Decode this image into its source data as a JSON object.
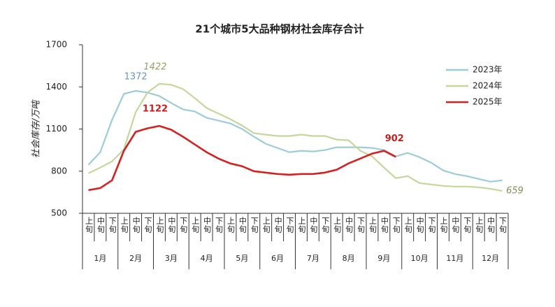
{
  "chart_data": {
    "type": "line",
    "title": "21个城市5大品种钢材社会库存合计",
    "y_label": "社会库存/万吨",
    "categories": [
      "上旬",
      "中旬",
      "下旬",
      "上旬",
      "中旬",
      "下旬",
      "上旬",
      "中旬",
      "下旬",
      "上旬",
      "中旬",
      "下旬",
      "上旬",
      "中旬",
      "下旬",
      "上旬",
      "中旬",
      "下旬",
      "上旬",
      "中旬",
      "下旬",
      "上旬",
      "中旬",
      "下旬",
      "上旬",
      "中旬",
      "下旬",
      "上旬",
      "中旬",
      "下旬",
      "上旬",
      "中旬",
      "下旬",
      "上旬",
      "中旬",
      "下旬"
    ],
    "months": [
      "1月",
      "2月",
      "3月",
      "4月",
      "5月",
      "6月",
      "7月",
      "8月",
      "9月",
      "10月",
      "11月",
      "12月"
    ],
    "ylim": [
      500,
      1700
    ],
    "yticks": [
      500,
      800,
      1100,
      1400,
      1700
    ],
    "grid": false,
    "legend": "upper right",
    "series": [
      {
        "name": "2023年",
        "color": "#9ecbd9",
        "values": [
          845,
          935,
          1165,
          1350,
          1372,
          1360,
          1335,
          1285,
          1240,
          1225,
          1180,
          1160,
          1140,
          1100,
          1045,
          995,
          965,
          935,
          945,
          940,
          950,
          970,
          970,
          970,
          965,
          950,
          905,
          930,
          900,
          860,
          805,
          780,
          765,
          745,
          725,
          735
        ]
      },
      {
        "name": "2024年",
        "color": "#c4d79b",
        "values": [
          785,
          825,
          870,
          955,
          1220,
          1360,
          1422,
          1415,
          1385,
          1320,
          1250,
          1210,
          1170,
          1125,
          1070,
          1060,
          1050,
          1050,
          1060,
          1050,
          1050,
          1025,
          1020,
          945,
          905,
          825,
          750,
          765,
          715,
          705,
          695,
          690,
          690,
          685,
          675,
          659
        ]
      },
      {
        "name": "2025年",
        "color": "#d42222",
        "values": [
          665,
          680,
          735,
          945,
          1080,
          1105,
          1122,
          1095,
          1045,
          990,
          935,
          890,
          855,
          835,
          800,
          790,
          780,
          775,
          780,
          780,
          790,
          810,
          855,
          890,
          925,
          945,
          902,
          null,
          null,
          null,
          null,
          null,
          null,
          null,
          null,
          null
        ]
      }
    ]
  }
}
